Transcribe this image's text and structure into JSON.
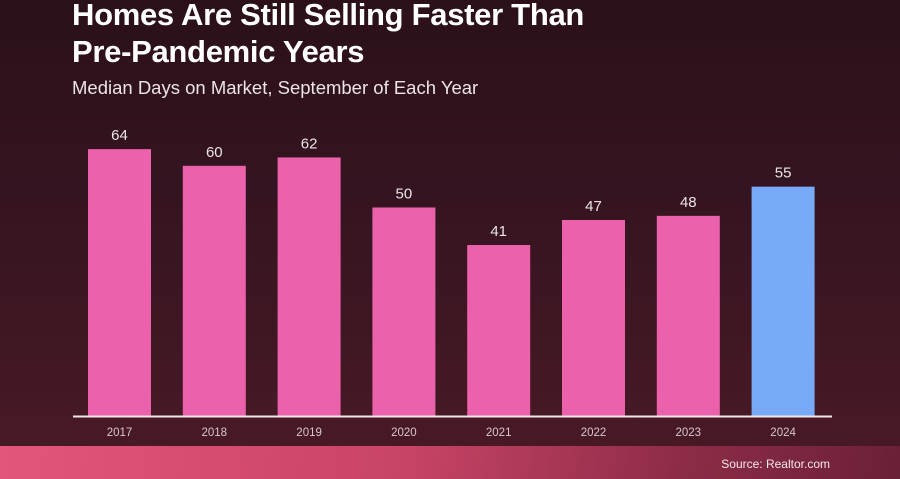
{
  "chart_data": {
    "type": "bar",
    "title": "Homes Are Still Selling Faster Than Pre-Pandemic Years",
    "title_lines": [
      "Homes Are Still Selling Faster Than",
      "Pre-Pandemic Years"
    ],
    "subtitle": "Median Days on Market, September of Each Year",
    "xlabel": "",
    "ylabel": "",
    "categories": [
      "2017",
      "2018",
      "2019",
      "2020",
      "2021",
      "2022",
      "2023",
      "2024"
    ],
    "values": [
      64,
      60,
      62,
      50,
      41,
      47,
      48,
      55
    ],
    "ylim": [
      0,
      70
    ],
    "grid": false,
    "bar_colors": [
      "#ec61ab",
      "#ec61ab",
      "#ec61ab",
      "#ec61ab",
      "#ec61ab",
      "#ec61ab",
      "#ec61ab",
      "#78aaf7"
    ],
    "data_labels": [
      "64",
      "60",
      "62",
      "50",
      "41",
      "47",
      "48",
      "55"
    ]
  },
  "footer": {
    "source": "Source: Realtor.com"
  }
}
